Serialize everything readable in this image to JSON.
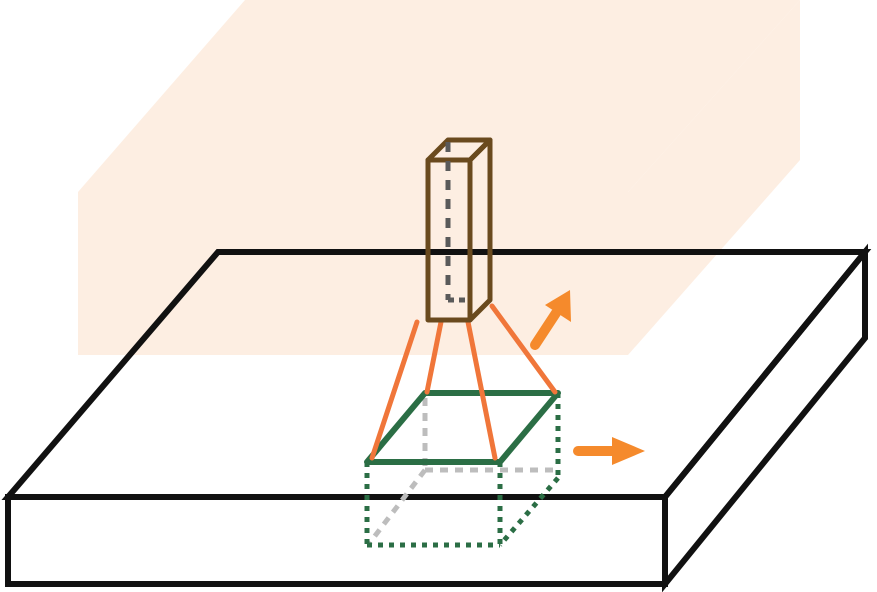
{
  "diagram": {
    "colors": {
      "background": "#ffffff",
      "shaded_box": "#fdeee2",
      "slab_outline": "#111111",
      "tool_column": "#6a4a1e",
      "tool_dashes": "#5a5a5a",
      "lines": "#f0763a",
      "top_square": "#2b6e45",
      "cube_edges": "#2b6e45",
      "hidden_edges": "#bdbdbd",
      "arrows": "#f58a2c"
    },
    "icons": {
      "arrow_diagonal": "arrow-up-right-icon",
      "arrow_right": "arrow-right-icon"
    }
  }
}
